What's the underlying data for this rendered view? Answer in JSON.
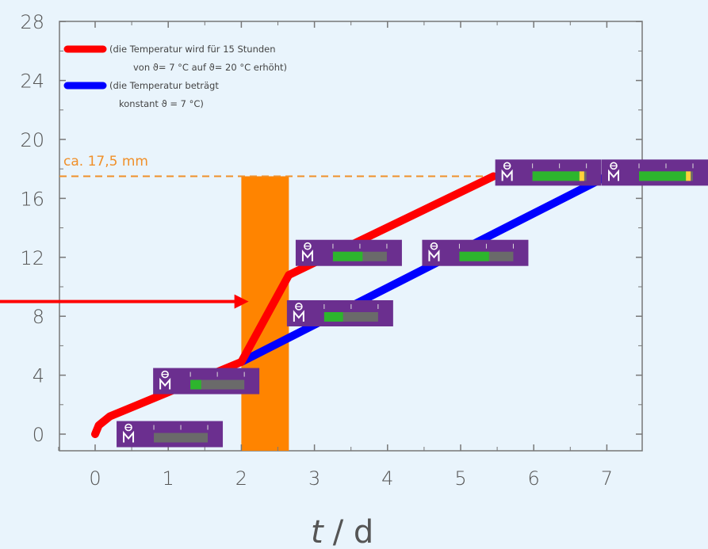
{
  "chart_data": {
    "type": "line",
    "xlabel_var": "t",
    "xlabel_unit": "/ d",
    "ylabel": "",
    "xlim": [
      -0.5,
      7.5
    ],
    "ylim": [
      -1,
      28
    ],
    "xticks": [
      0,
      1,
      2,
      3,
      4,
      5,
      6,
      7
    ],
    "yticks": [
      0,
      4,
      8,
      12,
      16,
      20,
      24,
      28
    ],
    "legend_position": "top-left",
    "series": [
      {
        "color": "#ff0000",
        "legend": [
          "(die Temperatur wird für 15 Stunden",
          "von ϑ= 7 °C auf ϑ= 20 °C erhöht)"
        ],
        "x": [
          0,
          0.05,
          0.2,
          2.0,
          2.65,
          5.45
        ],
        "y": [
          0,
          0.6,
          1.2,
          4.9,
          10.8,
          17.5
        ]
      },
      {
        "color": "#0000ff",
        "legend": [
          "(die Temperatur beträgt",
          "konstant ϑ = 7 °C)"
        ],
        "x": [
          2.0,
          7.0
        ],
        "y": [
          4.9,
          17.5
        ]
      }
    ],
    "reference_line": {
      "y": 17.5,
      "label": "ca. 17,5 mm",
      "color": "#f0902a"
    },
    "highlight_band": {
      "x_start": 2.0,
      "x_end": 2.65,
      "color": "#ff8400"
    },
    "arrow": {
      "color": "#ff0000",
      "target_x": 2.1,
      "target_y": 9
    },
    "gauges": [
      {
        "x": 1.02,
        "y": 0,
        "fill": 0.0
      },
      {
        "x": 1.52,
        "y": 3.6,
        "fill": 0.2
      },
      {
        "x": 3.35,
        "y": 8.2,
        "fill": 0.35
      },
      {
        "x": 3.47,
        "y": 12.3,
        "fill": 0.55
      },
      {
        "x": 5.2,
        "y": 12.3,
        "fill": 0.55
      },
      {
        "x": 6.2,
        "y": 17.75,
        "fill": 0.9
      },
      {
        "x": 7.7,
        "y": 17.75,
        "fill": 0.9
      }
    ],
    "colors": {
      "gauge_body": "#6b2f8f",
      "gauge_fill": "#2db52d",
      "gauge_track": "#6a6a6a",
      "gauge_tip": "#ffd23a"
    }
  }
}
